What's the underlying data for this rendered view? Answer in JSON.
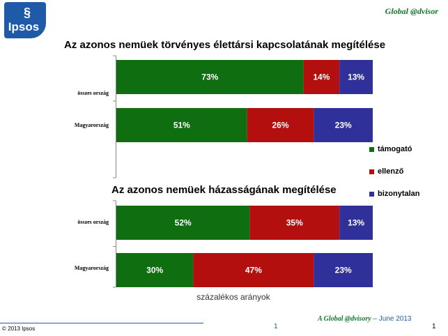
{
  "header": {
    "logo_text": "Ipsos",
    "brand": "Global @dvisor"
  },
  "legend": [
    {
      "name": "támogató",
      "color": "#0f6e0f"
    },
    {
      "name": "ellenző",
      "color": "#b40f0f"
    },
    {
      "name": "bizonytalan",
      "color": "#30309a"
    }
  ],
  "chart_data": [
    {
      "type": "bar",
      "orientation": "horizontal",
      "stacked": true,
      "title": "Az azonos nemüek törvényes élettársi kapcsolatának megítélése",
      "categories": [
        "összes ország",
        "Magyarország"
      ],
      "series": [
        {
          "name": "támogató",
          "values": [
            73,
            51
          ]
        },
        {
          "name": "ellenző",
          "values": [
            14,
            26
          ]
        },
        {
          "name": "bizonytalan",
          "values": [
            13,
            23
          ]
        }
      ],
      "xlim": [
        0,
        100
      ],
      "value_suffix": "%"
    },
    {
      "type": "bar",
      "orientation": "horizontal",
      "stacked": true,
      "title": "Az azonos nemüek házasságának megítélése",
      "categories": [
        "összes ország",
        "Magyarország"
      ],
      "series": [
        {
          "name": "támogató",
          "values": [
            52,
            30
          ]
        },
        {
          "name": "ellenző",
          "values": [
            35,
            47
          ]
        },
        {
          "name": "bizonytalan",
          "values": [
            13,
            23
          ]
        }
      ],
      "xlim": [
        0,
        100
      ],
      "xlabel": "százalékos arányok",
      "value_suffix": "%"
    }
  ],
  "footer": {
    "copyright": "© 2013 Ipsos",
    "page_mid": "1",
    "page_right": "1",
    "brand_name": "A Global @dvisory",
    "brand_date": " – June 2013"
  }
}
